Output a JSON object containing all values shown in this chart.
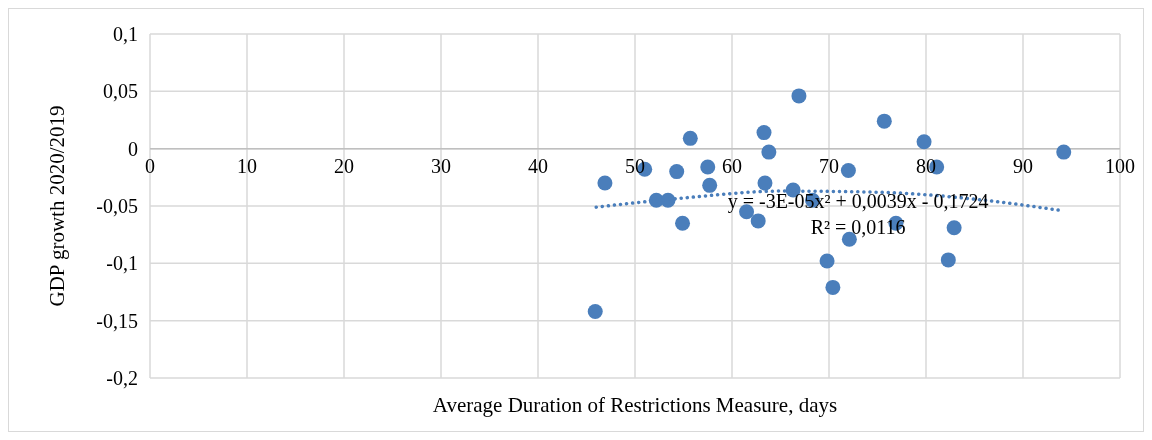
{
  "chart_data": {
    "type": "scatter",
    "xlabel": "Average Duration of Restrictions Measure, days",
    "ylabel": "GDP growth 2020/2019",
    "xlim": [
      0,
      100
    ],
    "xticks": [
      0,
      10,
      20,
      30,
      40,
      50,
      60,
      70,
      80,
      90,
      100
    ],
    "ylim": [
      -0.2,
      0.1
    ],
    "yticks": [
      {
        "value": 0.1,
        "label": "0,1"
      },
      {
        "value": 0.05,
        "label": "0,05"
      },
      {
        "value": 0,
        "label": "0"
      },
      {
        "value": -0.05,
        "label": "-0,05"
      },
      {
        "value": -0.1,
        "label": "-0,1"
      },
      {
        "value": -0.15,
        "label": "-0,15"
      },
      {
        "value": -0.2,
        "label": "-0,2"
      }
    ],
    "grid": true,
    "marker": "circle",
    "annotations": [
      "y = -3E-05x² + 0,0039x - 0,1724",
      "R² = 0,0116"
    ],
    "series": [
      {
        "color": "#4a7ebb",
        "x": [
          46.9,
          45.9,
          51.0,
          52.2,
          53.4,
          54.3,
          54.9,
          55.7,
          57.5,
          57.7,
          61.5,
          62.7,
          63.3,
          63.8,
          63.4,
          66.3,
          66.9,
          68.3,
          72.0,
          72.1,
          69.8,
          70.4,
          75.7,
          76.9,
          79.8,
          81.1,
          82.9,
          82.3,
          94.2
        ],
        "values": [
          -0.03,
          -0.142,
          -0.018,
          -0.045,
          -0.045,
          -0.02,
          -0.065,
          0.009,
          -0.016,
          -0.032,
          -0.055,
          -0.063,
          0.014,
          -0.003,
          -0.03,
          -0.036,
          0.046,
          -0.045,
          -0.019,
          -0.079,
          -0.098,
          -0.121,
          0.024,
          -0.065,
          0.006,
          -0.016,
          -0.069,
          -0.097,
          -0.003
        ]
      },
      {
        "type": "line",
        "color": "#4a7ebb",
        "line_style": "dotted",
        "marker": "none",
        "x": [
          46,
          55,
          65,
          75,
          85,
          94
        ],
        "values": [
          -0.051,
          -0.043,
          -0.037,
          -0.038,
          -0.044,
          -0.054
        ]
      }
    ]
  }
}
